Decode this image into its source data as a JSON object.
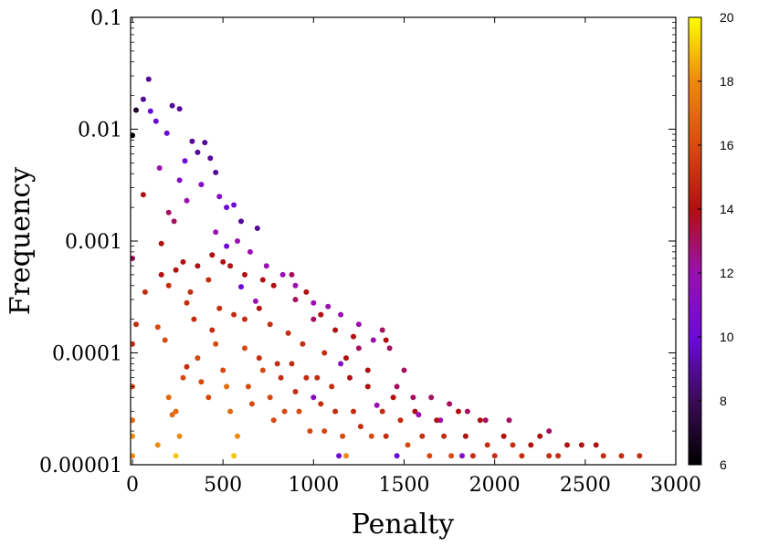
{
  "chart_data": {
    "type": "scatter",
    "title": "",
    "xlabel": "Penalty",
    "ylabel": "Frequency",
    "xlim": [
      -10,
      3000
    ],
    "ylim": [
      1e-05,
      0.1
    ],
    "yscale": "log",
    "x_ticks": [
      0,
      500,
      1000,
      1500,
      2000,
      2500,
      3000
    ],
    "x_tick_labels": [
      "0",
      "500",
      "1000",
      "1500",
      "2000",
      "2500",
      "3000"
    ],
    "y_ticks": [
      1e-05,
      0.0001,
      0.001,
      0.01,
      0.1
    ],
    "y_tick_labels": [
      "0.00001",
      "0.0001",
      "0.001",
      "0.01",
      "0.1"
    ],
    "grid": false,
    "legend": "none",
    "colorbar": {
      "min": 6,
      "max": 20,
      "ticks": [
        6,
        8,
        10,
        12,
        14,
        16,
        18,
        20
      ],
      "tick_labels": [
        "6",
        "8",
        "10",
        "12",
        "14",
        "16",
        "18",
        "20"
      ],
      "palette": "black-purple-red-orange-yellow"
    },
    "points": [
      [
        0,
        0.0088,
        6
      ],
      [
        20,
        0.0148,
        7
      ],
      [
        60,
        0.0185,
        9
      ],
      [
        90,
        0.028,
        9
      ],
      [
        100,
        0.0145,
        10
      ],
      [
        130,
        0.0118,
        10
      ],
      [
        150,
        0.0045,
        12
      ],
      [
        190,
        0.0092,
        10
      ],
      [
        220,
        0.0162,
        9
      ],
      [
        260,
        0.0152,
        9
      ],
      [
        290,
        0.0052,
        10
      ],
      [
        330,
        0.0078,
        9
      ],
      [
        360,
        0.0062,
        9
      ],
      [
        400,
        0.0076,
        9
      ],
      [
        430,
        0.0055,
        9
      ],
      [
        460,
        0.0041,
        9
      ],
      [
        260,
        0.0035,
        11
      ],
      [
        380,
        0.0032,
        11
      ],
      [
        480,
        0.0025,
        11
      ],
      [
        560,
        0.0021,
        10
      ],
      [
        520,
        0.002,
        10
      ],
      [
        600,
        0.0015,
        9
      ],
      [
        690,
        0.0013,
        9
      ],
      [
        300,
        0.0023,
        12
      ],
      [
        200,
        0.0018,
        13
      ],
      [
        230,
        0.0015,
        13
      ],
      [
        520,
        0.0009,
        10
      ],
      [
        580,
        0.001,
        12
      ],
      [
        460,
        0.0012,
        12
      ],
      [
        650,
        0.0008,
        12
      ],
      [
        740,
        0.0006,
        12
      ],
      [
        830,
        0.0005,
        12
      ],
      [
        900,
        0.0004,
        12
      ],
      [
        1000,
        0.00028,
        12
      ],
      [
        1080,
        0.00026,
        12
      ],
      [
        1150,
        0.00022,
        12
      ],
      [
        1250,
        0.00018,
        12
      ],
      [
        1330,
        0.00013,
        12
      ],
      [
        1420,
        0.00011,
        13
      ],
      [
        1500,
        7e-05,
        13
      ],
      [
        1150,
        8e-05,
        11
      ],
      [
        1250,
        0.00011,
        13
      ],
      [
        600,
        0.00039,
        10
      ],
      [
        680,
        0.00029,
        12
      ],
      [
        1000,
        4e-05,
        11
      ],
      [
        1350,
        3.4e-05,
        12
      ],
      [
        1700,
        2.5e-05,
        12
      ],
      [
        1460,
        1.2e-05,
        10
      ],
      [
        1820,
        1.2e-05,
        11
      ],
      [
        1140,
        1.2e-05,
        10
      ],
      [
        60,
        0.0026,
        14
      ],
      [
        160,
        0.00095,
        14
      ],
      [
        0,
        0.0007,
        13
      ],
      [
        70,
        0.00035,
        15
      ],
      [
        0,
        0.00012,
        15
      ],
      [
        0,
        5e-05,
        16
      ],
      [
        0,
        2.5e-05,
        17
      ],
      [
        0,
        1.8e-05,
        18
      ],
      [
        0,
        1.2e-05,
        18
      ],
      [
        20,
        0.00018,
        15
      ],
      [
        140,
        0.00017,
        16
      ],
      [
        180,
        0.00013,
        16
      ],
      [
        200,
        4e-05,
        17
      ],
      [
        220,
        2.8e-05,
        17
      ],
      [
        140,
        1.5e-05,
        18
      ],
      [
        240,
        3e-05,
        17
      ],
      [
        240,
        1.2e-05,
        19
      ],
      [
        260,
        1.8e-05,
        18
      ],
      [
        280,
        6e-05,
        16
      ],
      [
        300,
        7.5e-05,
        15
      ],
      [
        360,
        9e-05,
        16
      ],
      [
        380,
        5.5e-05,
        16
      ],
      [
        420,
        4e-05,
        16
      ],
      [
        440,
        0.00016,
        15
      ],
      [
        460,
        0.00012,
        16
      ],
      [
        500,
        7e-05,
        16
      ],
      [
        520,
        5e-05,
        17
      ],
      [
        540,
        3e-05,
        17
      ],
      [
        560,
        1.2e-05,
        19
      ],
      [
        580,
        1.8e-05,
        18
      ],
      [
        620,
        0.00011,
        16
      ],
      [
        640,
        5e-05,
        16
      ],
      [
        660,
        3.5e-05,
        16
      ],
      [
        700,
        9e-05,
        15
      ],
      [
        720,
        7e-05,
        16
      ],
      [
        760,
        4e-05,
        16
      ],
      [
        780,
        2.5e-05,
        16
      ],
      [
        800,
        8e-05,
        15
      ],
      [
        820,
        6e-05,
        15
      ],
      [
        840,
        3e-05,
        16
      ],
      [
        880,
        8e-05,
        15
      ],
      [
        900,
        4.5e-05,
        15
      ],
      [
        920,
        3e-05,
        16
      ],
      [
        960,
        6e-05,
        15
      ],
      [
        980,
        2e-05,
        16
      ],
      [
        1020,
        6e-05,
        15
      ],
      [
        1040,
        3.5e-05,
        15
      ],
      [
        1060,
        2e-05,
        16
      ],
      [
        1100,
        5e-05,
        15
      ],
      [
        1120,
        3e-05,
        15
      ],
      [
        1160,
        1.8e-05,
        16
      ],
      [
        1180,
        1.2e-05,
        18
      ],
      [
        1200,
        6e-05,
        14
      ],
      [
        1220,
        3e-05,
        15
      ],
      [
        1260,
        2.2e-05,
        15
      ],
      [
        1300,
        5e-05,
        14
      ],
      [
        1320,
        1.8e-05,
        16
      ],
      [
        1380,
        3e-05,
        15
      ],
      [
        1400,
        1.8e-05,
        15
      ],
      [
        1440,
        4e-05,
        14
      ],
      [
        1480,
        2.5e-05,
        15
      ],
      [
        1520,
        1.5e-05,
        16
      ],
      [
        1560,
        3e-05,
        14
      ],
      [
        1600,
        1.8e-05,
        15
      ],
      [
        1640,
        1.2e-05,
        16
      ],
      [
        1680,
        2.5e-05,
        14
      ],
      [
        1720,
        1.8e-05,
        15
      ],
      [
        1760,
        1.2e-05,
        16
      ],
      [
        1800,
        3e-05,
        14
      ],
      [
        1840,
        1.8e-05,
        14
      ],
      [
        1880,
        1.2e-05,
        15
      ],
      [
        1920,
        2.5e-05,
        14
      ],
      [
        1960,
        1.5e-05,
        15
      ],
      [
        2000,
        1.2e-05,
        15
      ],
      [
        2050,
        1.8e-05,
        14
      ],
      [
        2100,
        1.5e-05,
        15
      ],
      [
        2150,
        1.2e-05,
        15
      ],
      [
        2200,
        1.5e-05,
        14
      ],
      [
        2250,
        1.8e-05,
        14
      ],
      [
        2300,
        1.2e-05,
        15
      ],
      [
        2350,
        1.2e-05,
        15
      ],
      [
        2400,
        1.5e-05,
        14
      ],
      [
        2480,
        1.5e-05,
        14
      ],
      [
        2560,
        1.5e-05,
        14
      ],
      [
        2600,
        1.2e-05,
        15
      ],
      [
        2700,
        1.2e-05,
        15
      ],
      [
        2800,
        1.2e-05,
        15
      ],
      [
        300,
        0.00028,
        15
      ],
      [
        320,
        0.00035,
        15
      ],
      [
        340,
        0.0002,
        15
      ],
      [
        420,
        0.00045,
        15
      ],
      [
        480,
        0.00025,
        15
      ],
      [
        560,
        0.00022,
        15
      ],
      [
        620,
        0.0002,
        15
      ],
      [
        700,
        0.00025,
        14
      ],
      [
        760,
        0.00018,
        15
      ],
      [
        860,
        0.00015,
        15
      ],
      [
        940,
        0.00012,
        15
      ],
      [
        1060,
        0.0001,
        15
      ],
      [
        1180,
        9e-05,
        14
      ],
      [
        1300,
        7e-05,
        14
      ],
      [
        160,
        0.0005,
        14
      ],
      [
        200,
        0.0004,
        15
      ],
      [
        240,
        0.00055,
        14
      ],
      [
        280,
        0.00065,
        14
      ],
      [
        360,
        0.0006,
        14
      ],
      [
        440,
        0.00075,
        14
      ],
      [
        500,
        0.00065,
        14
      ],
      [
        540,
        0.0006,
        14
      ],
      [
        620,
        0.0005,
        14
      ],
      [
        720,
        0.00045,
        14
      ],
      [
        780,
        0.0004,
        14
      ],
      [
        960,
        0.00035,
        14
      ],
      [
        1040,
        0.00022,
        14
      ],
      [
        1120,
        0.00016,
        14
      ],
      [
        1220,
        0.00014,
        14
      ],
      [
        1400,
        0.00013,
        14
      ],
      [
        1380,
        0.00016,
        13
      ],
      [
        1460,
        5e-05,
        13
      ],
      [
        1550,
        4e-05,
        13
      ],
      [
        1650,
        4e-05,
        13
      ],
      [
        1750,
        3.5e-05,
        13
      ],
      [
        1850,
        3e-05,
        13
      ],
      [
        1950,
        2.5e-05,
        13
      ],
      [
        2080,
        2.5e-05,
        13
      ],
      [
        2300,
        2e-05,
        13
      ],
      [
        1580,
        2.8e-05,
        12
      ],
      [
        1000,
        0.0002,
        13
      ],
      [
        900,
        0.0003,
        13
      ],
      [
        880,
        0.0005,
        13
      ]
    ]
  }
}
